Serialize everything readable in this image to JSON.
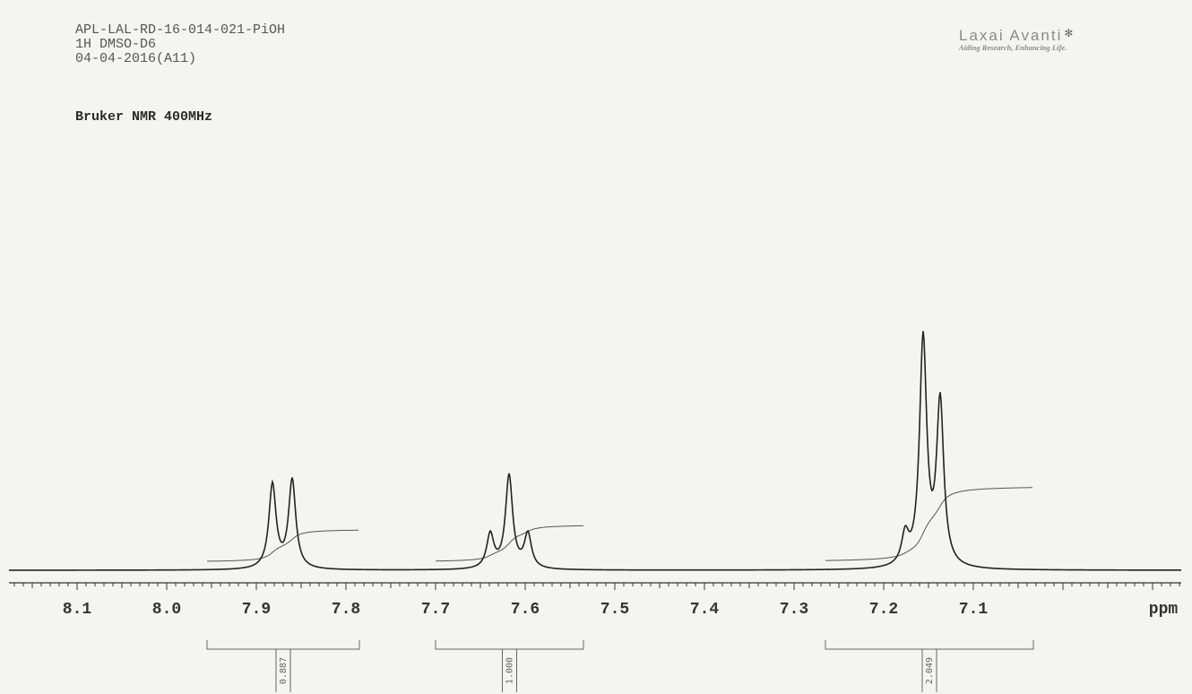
{
  "header": {
    "sample_id": "APL-LAL-RD-16-014-021-PiOH",
    "experiment": "1H DMSO-D6",
    "date": "04-04-2016(A11)"
  },
  "instrument": "Bruker NMR 400MHz",
  "logo": {
    "name": "Laxai Avanti",
    "tagline": "Aiding Research, Enhancing Life."
  },
  "chart_data": {
    "type": "line",
    "title": "",
    "xlabel": "ppm",
    "ylabel": "",
    "x_reversed": true,
    "xlim": [
      8.15,
      7.02
    ],
    "x_ticks": [
      8.1,
      8.0,
      7.9,
      7.8,
      7.7,
      7.6,
      7.5,
      7.4,
      7.3,
      7.2,
      7.1
    ],
    "x_tick_labels": [
      "8.1",
      "8.0",
      "7.9",
      "7.8",
      "7.7",
      "7.6",
      "7.5",
      "7.4",
      "7.3",
      "7.2",
      "7.1"
    ],
    "peaks": [
      {
        "center": 7.882,
        "height": 0.37
      },
      {
        "center": 7.86,
        "height": 0.39
      },
      {
        "center": 7.639,
        "height": 0.15
      },
      {
        "center": 7.618,
        "height": 0.41
      },
      {
        "center": 7.597,
        "height": 0.15
      },
      {
        "center": 7.176,
        "height": 0.13
      },
      {
        "center": 7.156,
        "height": 1.0
      },
      {
        "center": 7.137,
        "height": 0.72
      }
    ],
    "integrations": [
      {
        "from": 7.955,
        "to": 7.785,
        "value": "0.887",
        "curve_rise": 0.145
      },
      {
        "from": 7.7,
        "to": 7.535,
        "value": "1.000",
        "curve_rise": 0.165
      },
      {
        "from": 7.265,
        "to": 7.033,
        "value": "2.049",
        "curve_rise": 0.335
      }
    ]
  }
}
